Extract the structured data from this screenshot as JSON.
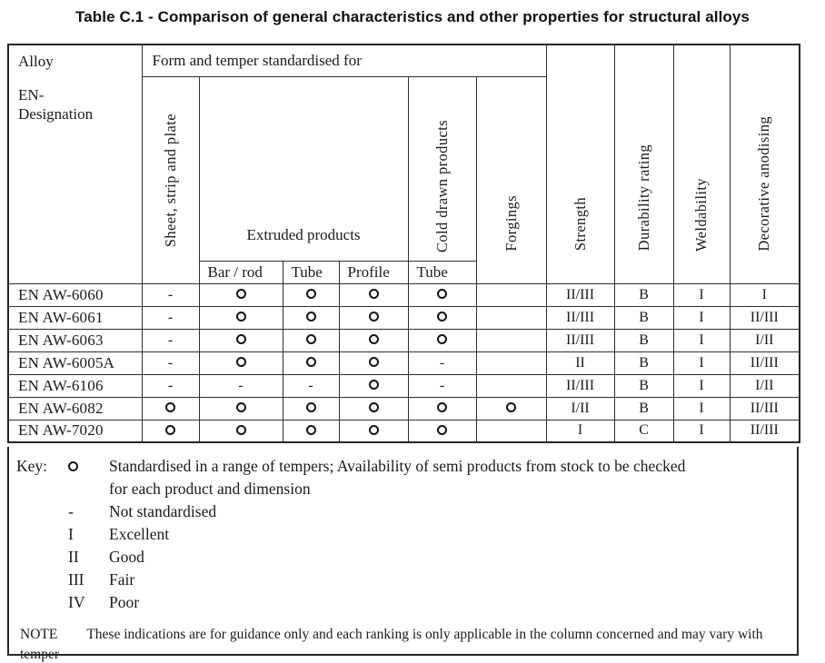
{
  "title": "Table C.1 - Comparison of general characteristics and other properties for structural alloys",
  "table": {
    "alloy_header": {
      "line1": "Alloy",
      "line2": "EN-",
      "line3": "Designation"
    },
    "form_temper_header": "Form and temper standardised for",
    "extruded_header": "Extruded products",
    "vertical_headers": {
      "sheet": "Sheet, strip and plate",
      "cold_drawn": "Cold drawn products",
      "forgings": "Forgings",
      "strength": "Strength",
      "durability": "Durability rating",
      "weldability": "Weldability",
      "anodising": "Decorative anodising"
    },
    "sub_headers": [
      "Bar / rod",
      "Tube",
      "Profile",
      "Tube"
    ],
    "rows": [
      {
        "alloy": "EN AW-6060",
        "cells": [
          "-",
          "O",
          "O",
          "O",
          "O",
          "",
          "II/III",
          "B",
          "I",
          "I"
        ]
      },
      {
        "alloy": "EN AW-6061",
        "cells": [
          "-",
          "O",
          "O",
          "O",
          "O",
          "",
          "II/III",
          "B",
          "I",
          "II/III"
        ]
      },
      {
        "alloy": "EN AW-6063",
        "cells": [
          "-",
          "O",
          "O",
          "O",
          "O",
          "",
          "II/III",
          "B",
          "I",
          "I/II"
        ]
      },
      {
        "alloy": "EN AW-6005A",
        "cells": [
          "-",
          "O",
          "O",
          "O",
          "-",
          "",
          "II",
          "B",
          "I",
          "II/III"
        ]
      },
      {
        "alloy": "EN AW-6106",
        "cells": [
          "-",
          "-",
          "-",
          "O",
          "-",
          "",
          "II/III",
          "B",
          "I",
          "I/II"
        ]
      },
      {
        "alloy": "EN AW-6082",
        "cells": [
          "O",
          "O",
          "O",
          "O",
          "O",
          "O",
          "I/II",
          "B",
          "I",
          "II/III"
        ]
      },
      {
        "alloy": "EN AW-7020",
        "cells": [
          "O",
          "O",
          "O",
          "O",
          "O",
          "",
          "I",
          "C",
          "I",
          "II/III"
        ]
      }
    ]
  },
  "key": {
    "label": "Key:",
    "items": [
      {
        "symbol": "O",
        "text": "Standardised in a range of tempers; Availability of semi products from stock to be checked",
        "text2": "for each product and dimension"
      },
      {
        "symbol": "-",
        "text": "Not standardised"
      },
      {
        "symbol": "I",
        "text": "Excellent"
      },
      {
        "symbol": "II",
        "text": "Good"
      },
      {
        "symbol": "III",
        "text": "Fair"
      },
      {
        "symbol": "IV",
        "text": "Poor"
      }
    ]
  },
  "note": {
    "label": "NOTE",
    "text_line1": "These indications are for guidance only and each ranking is only applicable in the column concerned and may vary with",
    "text_line2": "temper"
  },
  "colors": {
    "text": "#1b1b1b",
    "border": "#2e2e2e",
    "background": "#ffffff"
  }
}
